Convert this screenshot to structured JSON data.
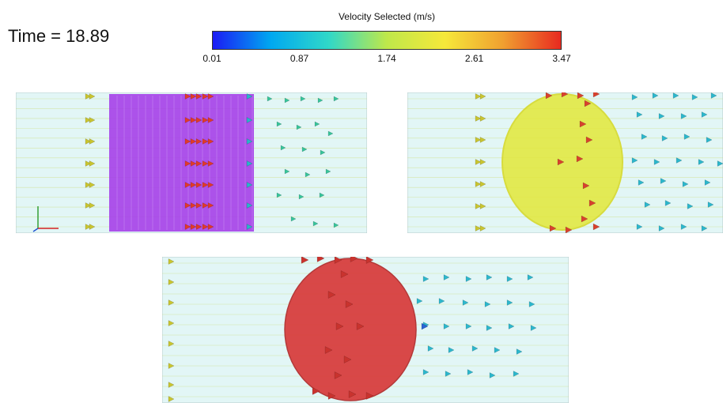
{
  "time_label": "Time = 18.89",
  "colorbar": {
    "title": "Velocity Selected (m/s)",
    "ticks": [
      "0.01",
      "0.87",
      "1.74",
      "2.61",
      "3.47"
    ],
    "colors": [
      "#1b1bf5",
      "#00a8f0",
      "#30d8c8",
      "#bfe84a",
      "#f6e83a",
      "#f0a030",
      "#e82a20"
    ]
  },
  "panels": [
    {
      "id": "square-obstacle",
      "obstacle_shape": "rectangle",
      "obstacle_color": "#9b2be8"
    },
    {
      "id": "circle-obstacle-yellow",
      "obstacle_shape": "ellipse",
      "obstacle_color": "#e4e83a"
    },
    {
      "id": "circle-obstacle-red",
      "obstacle_shape": "ellipse",
      "obstacle_color": "#d83a3a"
    }
  ]
}
